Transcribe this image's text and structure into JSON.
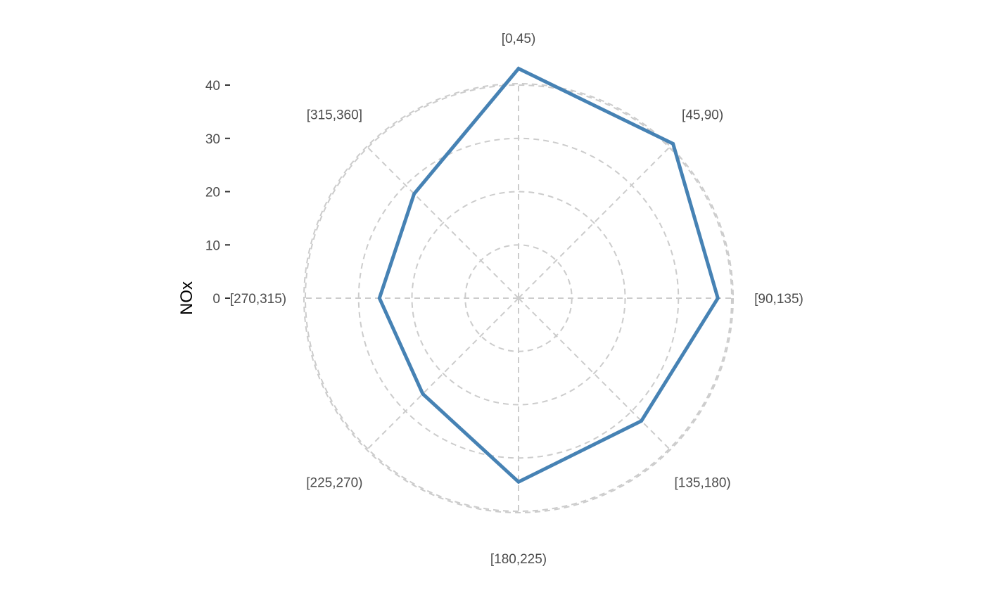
{
  "chart_data": {
    "type": "line",
    "coord": "polar",
    "categories": [
      "[0,45)",
      "[45,90)",
      "[90,135)",
      "[135,180)",
      "[180,225)",
      "[225,270)",
      "[270,315)",
      "[315,360]"
    ],
    "series": [
      {
        "values": [
          43.1,
          41.0,
          37.4,
          32.6,
          34.5,
          25.4,
          26.1,
          27.7
        ],
        "color": "#4682b4"
      }
    ],
    "ylabel": "NOx",
    "yticks": [
      0,
      10,
      20,
      30,
      40
    ],
    "ylim": [
      0,
      40
    ],
    "grid": true,
    "grid_color": "#cccccc"
  }
}
